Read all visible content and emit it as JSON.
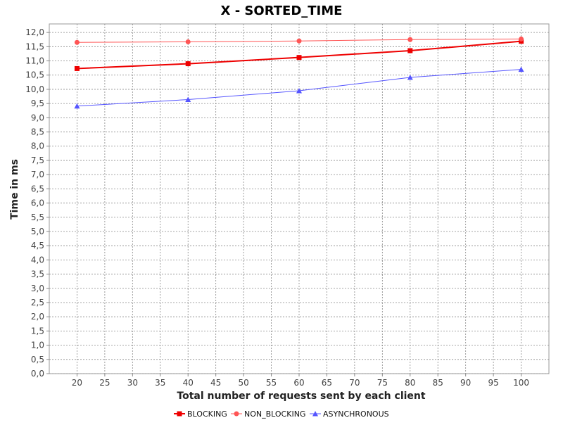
{
  "chart_data": {
    "type": "line",
    "title": "X - SORTED_TIME",
    "xlabel": "Total number of requests sent by each client",
    "ylabel": "Time in ms",
    "x": [
      20,
      40,
      60,
      80,
      100
    ],
    "xlim": [
      15,
      105
    ],
    "ylim": [
      0,
      12.3
    ],
    "x_ticks": [
      "20",
      "25",
      "30",
      "35",
      "40",
      "45",
      "50",
      "55",
      "60",
      "65",
      "70",
      "75",
      "80",
      "85",
      "90",
      "95",
      "100"
    ],
    "x_tick_values": [
      20,
      25,
      30,
      35,
      40,
      45,
      50,
      55,
      60,
      65,
      70,
      75,
      80,
      85,
      90,
      95,
      100
    ],
    "y_ticks": [
      "0,0",
      "0,5",
      "1,0",
      "1,5",
      "2,0",
      "2,5",
      "3,0",
      "3,5",
      "4,0",
      "4,5",
      "5,0",
      "5,5",
      "6,0",
      "6,5",
      "7,0",
      "7,5",
      "8,0",
      "8,5",
      "9,0",
      "9,5",
      "10,0",
      "10,5",
      "11,0",
      "11,5",
      "12,0"
    ],
    "y_tick_values": [
      0,
      0.5,
      1,
      1.5,
      2,
      2.5,
      3,
      3.5,
      4,
      4.5,
      5,
      5.5,
      6,
      6.5,
      7,
      7.5,
      8,
      8.5,
      9,
      9.5,
      10,
      10.5,
      11,
      11.5,
      12
    ],
    "grid": true,
    "legend_position": "bottom",
    "series": [
      {
        "name": "BLOCKING",
        "values": [
          10.73,
          10.9,
          11.12,
          11.36,
          11.69
        ],
        "color": "#ee0000",
        "marker": "square",
        "width": 2
      },
      {
        "name": "NON_BLOCKING",
        "values": [
          11.65,
          11.67,
          11.7,
          11.75,
          11.77
        ],
        "color": "#ff5555",
        "marker": "circle",
        "width": 1
      },
      {
        "name": "ASYNCHRONOUS",
        "values": [
          9.41,
          9.64,
          9.95,
          10.42,
          10.7
        ],
        "color": "#5555ff",
        "marker": "triangle",
        "width": 1
      }
    ]
  }
}
